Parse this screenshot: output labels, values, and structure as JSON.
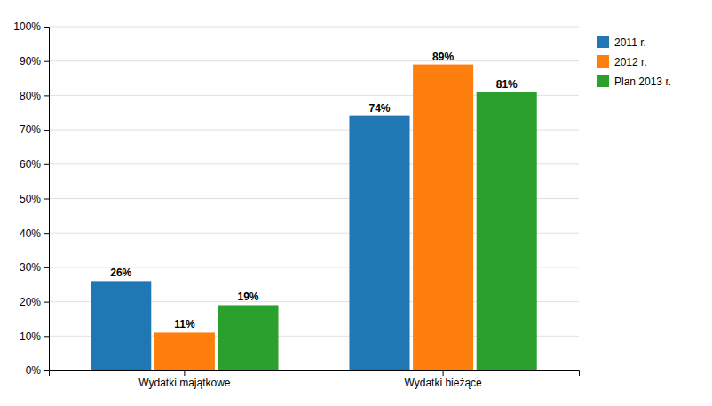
{
  "chart_data": {
    "type": "bar",
    "categories": [
      "Wydatki majątkowe",
      "Wydatki bieżące"
    ],
    "series": [
      {
        "name": "2011 r.",
        "values": [
          26,
          74
        ],
        "value_labels": [
          "26%",
          "74%"
        ]
      },
      {
        "name": "2012 r.",
        "values": [
          11,
          89
        ],
        "value_labels": [
          "11%",
          "89%"
        ]
      },
      {
        "name": "Plan 2013 r.",
        "values": [
          19,
          81
        ],
        "value_labels": [
          "19%",
          "81%"
        ]
      }
    ],
    "ylim": [
      0,
      100
    ],
    "yticks": [
      {
        "value": 0,
        "label": "0%"
      },
      {
        "value": 10,
        "label": "10%"
      },
      {
        "value": 20,
        "label": "20%"
      },
      {
        "value": 30,
        "label": "30%"
      },
      {
        "value": 40,
        "label": "40%"
      },
      {
        "value": 50,
        "label": "50%"
      },
      {
        "value": 60,
        "label": "60%"
      },
      {
        "value": 70,
        "label": "70%"
      },
      {
        "value": 80,
        "label": "80%"
      },
      {
        "value": 90,
        "label": "90%"
      },
      {
        "value": 100,
        "label": "100%"
      }
    ],
    "grid": true,
    "legend": "upper right",
    "data_labels": true
  }
}
